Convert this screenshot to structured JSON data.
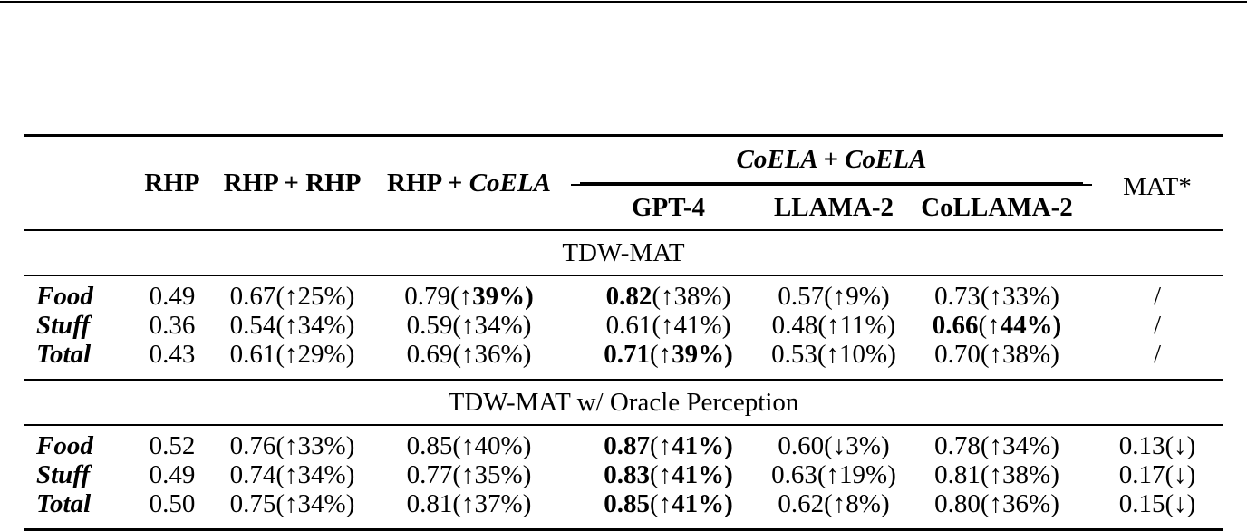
{
  "colors": {
    "text": "#000000",
    "rule": "#000000",
    "background": "#ffffff"
  },
  "table": {
    "header": {
      "rhp": "RHP",
      "rhp_rhp": "RHP + RHP",
      "rhp_coela_prefix": "RHP + ",
      "rhp_coela_italic": "CoELA",
      "group": "CoELA + CoELA",
      "mat": "MAT*",
      "sub": [
        "GPT-4",
        "LLAMA-2",
        "CoLLAMA-2"
      ]
    },
    "sections": [
      {
        "title": "TDW-MAT",
        "rows": [
          {
            "label": "Food",
            "cells": [
              {
                "v": "0.49"
              },
              {
                "v": "0.67",
                "a": "↑",
                "p": "25%"
              },
              {
                "v": "0.79",
                "a": "↑",
                "p": "39%",
                "pb": true
              },
              {
                "v": "0.82",
                "vb": true,
                "a": "↑",
                "p": "38%"
              },
              {
                "v": "0.57",
                "a": "↑",
                "p": "9%"
              },
              {
                "v": "0.73",
                "a": "↑",
                "p": "33%"
              },
              {
                "v": "/"
              }
            ]
          },
          {
            "label": "Stuff",
            "cells": [
              {
                "v": "0.36"
              },
              {
                "v": "0.54",
                "a": "↑",
                "p": "34%"
              },
              {
                "v": "0.59",
                "a": "↑",
                "p": "34%"
              },
              {
                "v": "0.61",
                "a": "↑",
                "p": "41%"
              },
              {
                "v": "0.48",
                "a": "↑",
                "p": "11%"
              },
              {
                "v": "0.66",
                "vb": true,
                "a": "↑",
                "p": "44%",
                "pb": true
              },
              {
                "v": "/"
              }
            ]
          },
          {
            "label": "Total",
            "cells": [
              {
                "v": "0.43"
              },
              {
                "v": "0.61",
                "a": "↑",
                "p": "29%"
              },
              {
                "v": "0.69",
                "a": "↑",
                "p": "36%"
              },
              {
                "v": "0.71",
                "vb": true,
                "a": "↑",
                "p": "39%",
                "pb": true
              },
              {
                "v": "0.53",
                "a": "↑",
                "p": "10%"
              },
              {
                "v": "0.70",
                "a": "↑",
                "p": "38%"
              },
              {
                "v": "/"
              }
            ]
          }
        ]
      },
      {
        "title": "TDW-MAT w/ Oracle Perception",
        "rows": [
          {
            "label": "Food",
            "cells": [
              {
                "v": "0.52"
              },
              {
                "v": "0.76",
                "a": "↑",
                "p": "33%"
              },
              {
                "v": "0.85",
                "a": "↑",
                "p": "40%"
              },
              {
                "v": "0.87",
                "vb": true,
                "a": "↑",
                "p": "41%",
                "pb": true
              },
              {
                "v": "0.60",
                "a": "↓",
                "p": "3%"
              },
              {
                "v": "0.78",
                "a": "↑",
                "p": "34%"
              },
              {
                "v": "0.13",
                "a": "↓",
                "p": ""
              }
            ]
          },
          {
            "label": "Stuff",
            "cells": [
              {
                "v": "0.49"
              },
              {
                "v": "0.74",
                "a": "↑",
                "p": "34%"
              },
              {
                "v": "0.77",
                "a": "↑",
                "p": "35%"
              },
              {
                "v": "0.83",
                "vb": true,
                "a": "↑",
                "p": "41%",
                "pb": true
              },
              {
                "v": "0.63",
                "a": "↑",
                "p": "19%"
              },
              {
                "v": "0.81",
                "a": "↑",
                "p": "38%"
              },
              {
                "v": "0.17",
                "a": "↓",
                "p": ""
              }
            ]
          },
          {
            "label": "Total",
            "cells": [
              {
                "v": "0.50"
              },
              {
                "v": "0.75",
                "a": "↑",
                "p": "34%"
              },
              {
                "v": "0.81",
                "a": "↑",
                "p": "37%"
              },
              {
                "v": "0.85",
                "vb": true,
                "a": "↑",
                "p": "41%",
                "pb": true
              },
              {
                "v": "0.62",
                "a": "↑",
                "p": "8%"
              },
              {
                "v": "0.80",
                "a": "↑",
                "p": "36%"
              },
              {
                "v": "0.15",
                "a": "↓",
                "p": ""
              }
            ]
          }
        ]
      }
    ]
  }
}
